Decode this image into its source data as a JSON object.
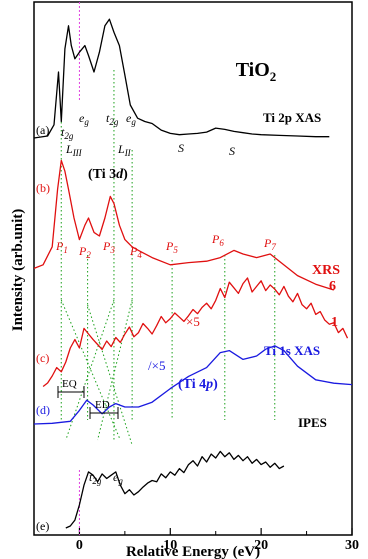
{
  "chart_data": {
    "type": "line",
    "title": "TiO2",
    "xlabel": "Relative Energy (eV)",
    "ylabel": "Intensity (arb.unit)",
    "xlim": [
      -5,
      30
    ],
    "x_ticks": [
      0,
      10,
      20,
      30
    ],
    "x_tick_labels": [
      "0",
      "10",
      "20",
      "30"
    ],
    "grid": false,
    "series": [
      {
        "name": "Ti 2p XAS",
        "label": "(a)",
        "color": "#000000",
        "x": [
          -5,
          -3.5,
          -2.8,
          -2.3,
          -2.0,
          -1.6,
          -1.2,
          -0.9,
          -0.5,
          0.0,
          0.6,
          1.0,
          1.6,
          2.2,
          2.8,
          3.3,
          3.8,
          4.4,
          5.0,
          5.6,
          6.4,
          7.2,
          8.0,
          9.0,
          10.0,
          11.0,
          12.0,
          13.0,
          14.0,
          15.0,
          16.0,
          17.0,
          18.0,
          19.0,
          20.0,
          22.0,
          24.0,
          26.0,
          27.5
        ],
        "y": [
          0.0,
          0.3,
          2.0,
          10.0,
          2.5,
          13.5,
          17.0,
          14.0,
          12.0,
          13.0,
          14.0,
          12.5,
          10.0,
          13.0,
          17.0,
          18.0,
          16.0,
          14.0,
          9.5,
          5.0,
          3.0,
          2.5,
          2.2,
          1.2,
          0.7,
          0.5,
          0.6,
          0.7,
          0.9,
          1.5,
          1.3,
          1.0,
          0.8,
          0.6,
          0.5,
          0.4,
          0.3,
          0.2,
          0.2
        ]
      },
      {
        "name": "XRS 6",
        "label": "(b)",
        "color": "#e01010",
        "x": [
          -5,
          -4.0,
          -3.0,
          -2.4,
          -2.0,
          -1.6,
          -1.2,
          -0.6,
          0.0,
          0.6,
          1.0,
          1.6,
          2.2,
          2.8,
          3.4,
          3.8,
          4.4,
          5.0,
          5.8,
          6.5,
          8.0,
          10.0,
          12.0,
          14.0,
          15.5,
          17.0,
          18.0,
          19.5,
          21.0,
          22.0,
          24.0,
          26.0,
          28.0
        ],
        "y": [
          3.0,
          3.5,
          6.0,
          14.0,
          18.0,
          16.5,
          14.0,
          10.0,
          7.0,
          9.0,
          10.0,
          8.0,
          7.5,
          10.0,
          13.0,
          12.0,
          9.0,
          7.0,
          6.0,
          5.5,
          4.5,
          3.5,
          3.8,
          4.0,
          4.5,
          5.5,
          5.0,
          4.5,
          5.0,
          4.0,
          2.0,
          0.8,
          0.0
        ]
      },
      {
        "name": "XRS 1",
        "label": "(c)",
        "color": "#e01010",
        "x": [
          -4.0,
          -3.5,
          -3.0,
          -2.5,
          -2.0,
          -1.5,
          -1.0,
          -0.5,
          0.0,
          0.5,
          1.0,
          1.5,
          2.0,
          2.5,
          3.0,
          3.5,
          4.0,
          4.5,
          5.0,
          5.5,
          6.0,
          6.5,
          7.0,
          7.5,
          8.0,
          8.5,
          9.0,
          9.5,
          10.0,
          10.5,
          11.0,
          11.5,
          12.0,
          12.5,
          13.0,
          13.5,
          14.0,
          14.5,
          15.0,
          15.5,
          16.0,
          16.5,
          17.0,
          17.5,
          18.0,
          18.5,
          19.0,
          19.5,
          20.0,
          20.5,
          21.0,
          21.5,
          22.0,
          22.5,
          23.0,
          23.5,
          24.0,
          24.5,
          25.0,
          25.5,
          26.0,
          26.5,
          27.0,
          27.5,
          28.0,
          28.5,
          29.0,
          29.5
        ],
        "y": [
          0.5,
          1.0,
          2.0,
          3.2,
          2.6,
          4.0,
          6.0,
          7.2,
          6.0,
          8.8,
          8.0,
          7.2,
          6.5,
          5.8,
          7.0,
          6.2,
          7.5,
          6.8,
          8.0,
          9.0,
          7.6,
          8.2,
          9.5,
          8.8,
          8.0,
          9.2,
          10.5,
          9.6,
          10.2,
          11.0,
          10.4,
          9.8,
          10.6,
          11.5,
          10.9,
          11.8,
          12.4,
          11.6,
          12.8,
          14.5,
          13.2,
          15.4,
          14.6,
          13.8,
          15.2,
          16.0,
          14.0,
          14.8,
          15.6,
          14.2,
          15.0,
          14.4,
          13.6,
          14.8,
          13.4,
          12.6,
          13.8,
          12.2,
          11.6,
          12.4,
          10.8,
          11.2,
          10.0,
          9.4,
          9.6,
          8.2,
          8.8,
          7.4
        ]
      },
      {
        "name": "Ti 1s XAS",
        "label": "(d)",
        "color": "#1a1ae0",
        "x": [
          -5,
          -3.0,
          -1.0,
          0.0,
          0.8,
          1.5,
          2.5,
          3.3,
          4.0,
          5.0,
          6.5,
          8.0,
          10.0,
          12.0,
          14.0,
          15.5,
          16.5,
          18.0,
          19.5,
          20.5,
          21.5,
          22.5,
          24.0,
          26.0,
          28.0,
          30.0
        ],
        "y": [
          0.0,
          0.1,
          0.4,
          2.0,
          3.5,
          2.8,
          1.5,
          2.5,
          3.0,
          2.5,
          2.5,
          3.2,
          5.2,
          7.0,
          8.3,
          10.5,
          10.8,
          9.5,
          10.0,
          11.0,
          11.5,
          10.8,
          8.5,
          6.5,
          6.0,
          5.8
        ]
      },
      {
        "name": "IPES",
        "label": "(e)",
        "color": "#000000",
        "x": [
          -1.5,
          -1.0,
          -0.5,
          0.0,
          0.5,
          1.0,
          1.5,
          2.0,
          2.5,
          3.0,
          3.5,
          4.0,
          4.5,
          5.0,
          5.5,
          6.0,
          6.5,
          7.0,
          7.5,
          8.0,
          8.5,
          9.0,
          9.5,
          10.0,
          10.5,
          11.0,
          11.5,
          12.0,
          12.5,
          13.0,
          13.5,
          14.0,
          14.5,
          15.0,
          15.5,
          16.0,
          16.5,
          17.0,
          17.5,
          18.0,
          18.5,
          19.0,
          19.5,
          20.0,
          20.5,
          21.0,
          21.5,
          22.0,
          22.5
        ],
        "y": [
          0.0,
          0.3,
          1.2,
          3.5,
          6.5,
          8.5,
          8.0,
          7.0,
          8.2,
          7.5,
          8.0,
          8.5,
          6.5,
          5.2,
          5.8,
          5.0,
          5.5,
          6.2,
          6.8,
          7.2,
          7.0,
          8.2,
          7.6,
          8.5,
          8.0,
          9.0,
          8.4,
          9.6,
          10.2,
          9.4,
          10.8,
          10.0,
          11.2,
          10.6,
          11.6,
          10.8,
          11.4,
          10.4,
          11.0,
          10.2,
          10.8,
          9.8,
          10.4,
          9.6,
          10.0,
          9.2,
          9.8,
          9.0,
          9.4
        ]
      }
    ],
    "annotations": {
      "title_sub": "2",
      "ti2p_label": "Ti 2p XAS",
      "xrs_label": "XRS",
      "xrs_6": "6",
      "xrs_1": "1",
      "ti1s_label": "Ti 1s XAS",
      "ipes_label": "IPES",
      "ti3d_label": "(Ti 3d)",
      "ti4p_label": "(Ti 4p)",
      "times5_a": "×5",
      "times5_b": "/×5",
      "eq_label": "EQ",
      "ed_label": "ED",
      "t2g_a": "t2g",
      "eg_a": "eg",
      "t2g_b": "t2g",
      "eg_b": "eg",
      "liii": "LIII",
      "lii": "LII",
      "s1": "S",
      "s2": "S",
      "t2g_e": "t2g",
      "eg_e": "eg",
      "p1": "P1",
      "p2": "P2",
      "p3": "P3",
      "p4": "P4",
      "p5": "P5",
      "p6": "P6",
      "p7": "P7"
    },
    "peak_lines_x": [
      -2.0,
      0.9,
      3.8,
      5.8,
      10.2,
      16.0,
      21.5
    ]
  }
}
